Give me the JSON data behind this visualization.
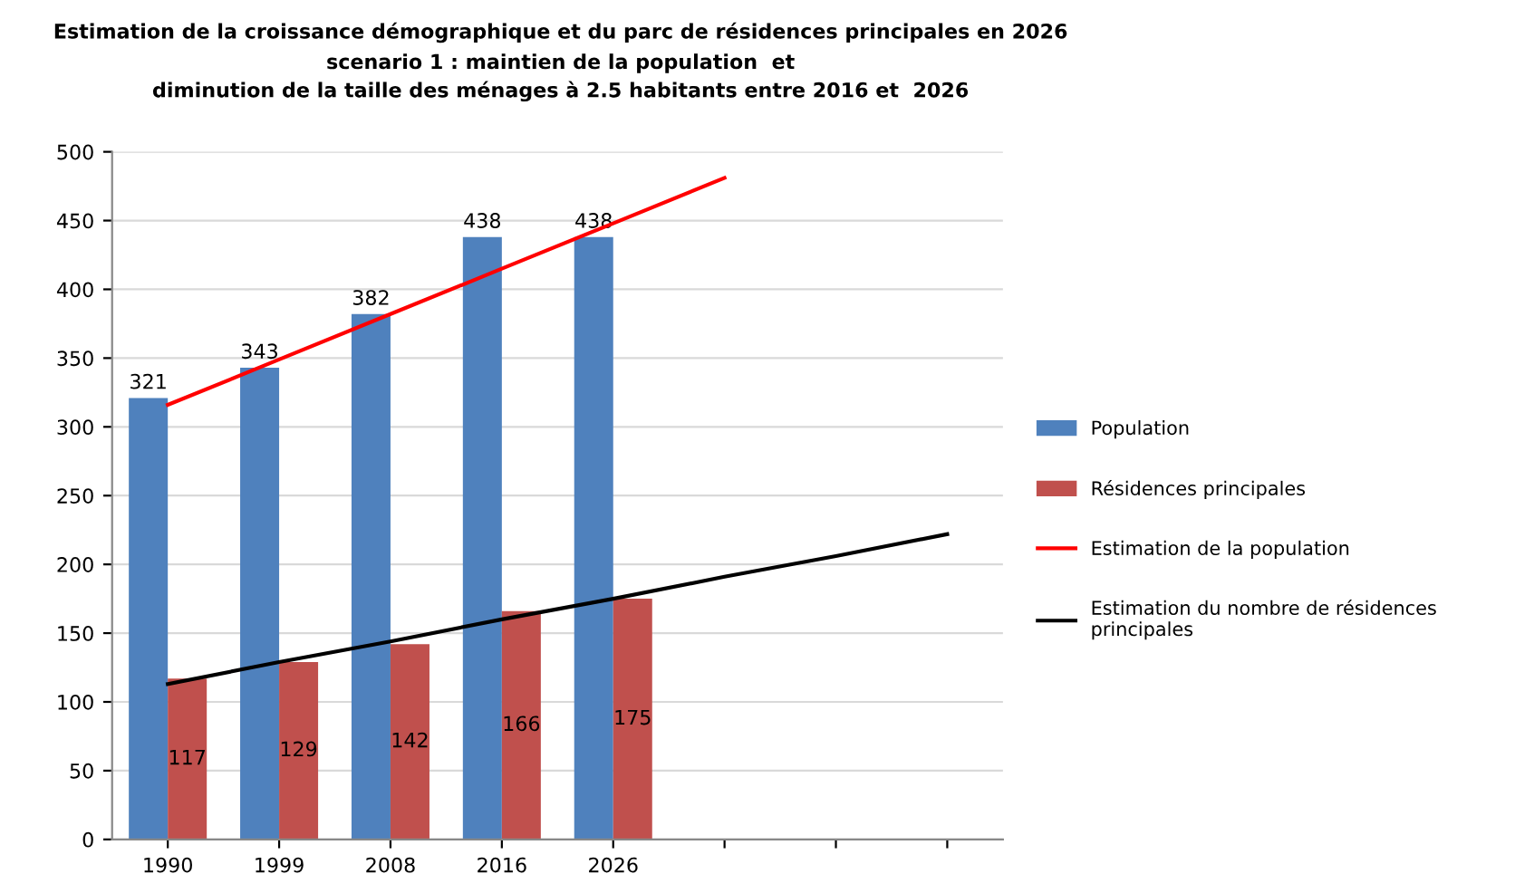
{
  "chart_data": {
    "type": "bar",
    "title": "Estimation de la croissance démographique et du parc de résidences principales en 2026",
    "subtitle": "scenario 1 : maintien de la population  et\ndiminution de la taille des ménages à 2.5 habitants entre 2016 et  2026",
    "categories": [
      "1990",
      "1999",
      "2008",
      "2016",
      "2026",
      null,
      null,
      null
    ],
    "series": [
      {
        "name": "Population",
        "color": "#4f81bd",
        "values": [
          321,
          343,
          382,
          438,
          438,
          null,
          null,
          null
        ],
        "value_labels": [
          "321",
          "343",
          "382",
          "438",
          "438",
          null,
          null,
          null
        ]
      },
      {
        "name": "Résidences principales",
        "color": "#c0504d",
        "values": [
          117,
          129,
          142,
          166,
          175,
          null,
          null,
          null
        ],
        "value_labels": [
          "117",
          "129",
          "142",
          "166",
          "175",
          null,
          null,
          null
        ]
      },
      {
        "name": "Estimation de la population",
        "type": "line",
        "color": "#ff0000",
        "values": [
          316,
          349,
          382,
          415,
          448,
          481,
          null,
          null
        ]
      },
      {
        "name": "Estimation du nombre de résidences\nprincipales",
        "type": "line",
        "color": "#000000",
        "values": [
          113,
          129,
          144,
          160,
          175,
          191,
          206,
          222
        ]
      }
    ],
    "ylim": [
      0,
      500
    ],
    "yticks": [
      0,
      50,
      100,
      150,
      200,
      250,
      300,
      350,
      400,
      450,
      500
    ],
    "grid": "y",
    "legend": "right"
  }
}
